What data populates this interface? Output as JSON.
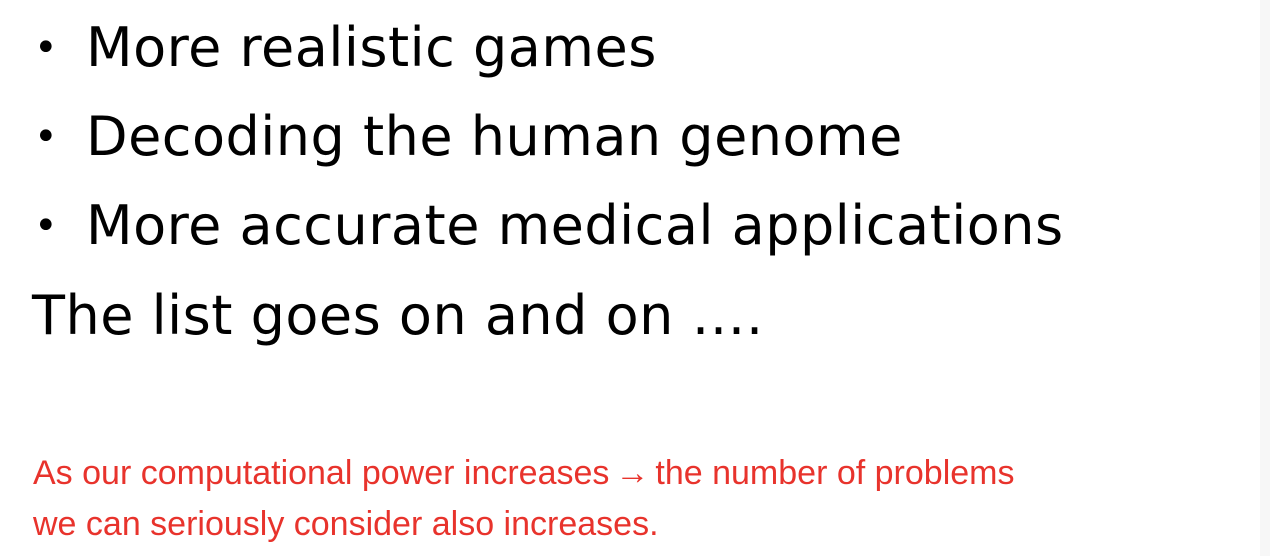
{
  "bullets": [
    {
      "text": "More realistic games"
    },
    {
      "text": "Decoding the human genome"
    },
    {
      "text": "More accurate medical applications"
    }
  ],
  "bullet_symbol": "•",
  "trailing_line": "The list goes on and on ….",
  "note": {
    "line1_before_arrow": "As our computational power increases",
    "arrow_symbol": "→",
    "line1_after_arrow": "the number of problems",
    "line2": "we can seriously consider also increases.",
    "color": "#e8332c"
  }
}
